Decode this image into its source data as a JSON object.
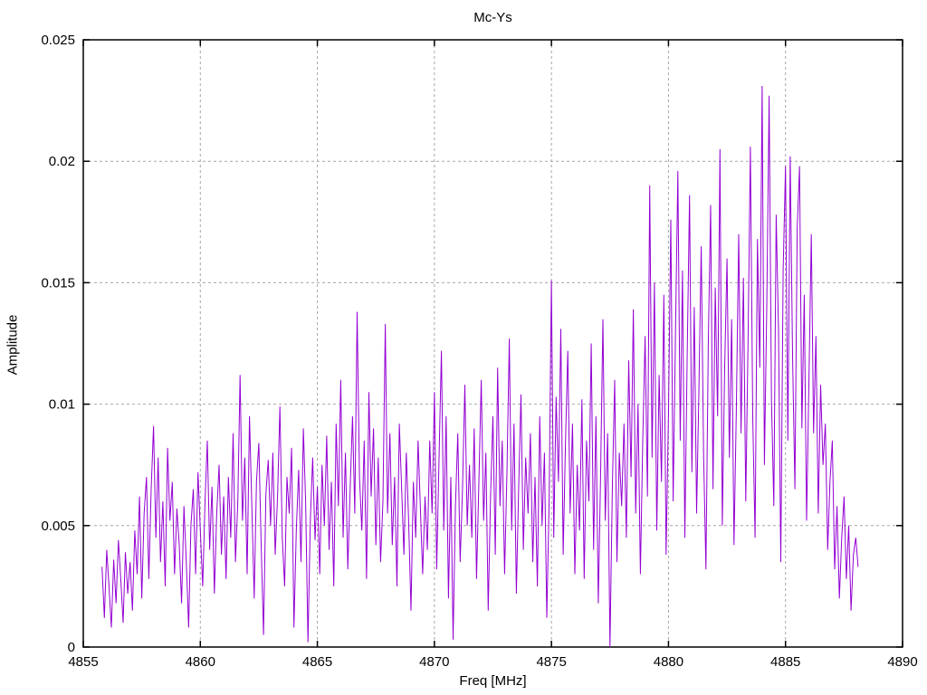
{
  "page": {
    "background": "#ffffff"
  },
  "chart_data": {
    "type": "line",
    "title": "Mc-Ys",
    "xlabel": "Freq [MHz]",
    "ylabel": "Amplitude",
    "xlim": [
      4855,
      4890
    ],
    "ylim": [
      0,
      0.025
    ],
    "x_ticks": [
      4855,
      4860,
      4865,
      4870,
      4875,
      4880,
      4885,
      4890
    ],
    "x_tick_labels": [
      "4855",
      "4860",
      "4865",
      "4870",
      "4875",
      "4880",
      "4885",
      "4890"
    ],
    "y_ticks": [
      0,
      0.005,
      0.01,
      0.015,
      0.02,
      0.025
    ],
    "y_tick_labels": [
      "0",
      "0.005",
      "0.01",
      "0.015",
      "0.02",
      "0.025"
    ],
    "grid": true,
    "legend": "none",
    "line_color": "#9400d3",
    "grid_color": "#a6a6a6",
    "axis_color": "#000000",
    "series": [
      {
        "name": "Mc-Ys",
        "x_start": 4855.8,
        "x_step": 0.1,
        "y_scale": 0.0001,
        "y": [
          33,
          12,
          40,
          25,
          8,
          36,
          18,
          44,
          28,
          10,
          39,
          22,
          35,
          15,
          48,
          30,
          62,
          20,
          55,
          70,
          28,
          65,
          91,
          45,
          78,
          35,
          60,
          25,
          82,
          52,
          68,
          30,
          57,
          42,
          18,
          58,
          35,
          8,
          50,
          65,
          30,
          72,
          48,
          25,
          60,
          85,
          40,
          66,
          22,
          55,
          75,
          38,
          62,
          28,
          70,
          45,
          88,
          35,
          60,
          112,
          52,
          78,
          30,
          95,
          58,
          20,
          68,
          84,
          42,
          5,
          63,
          77,
          50,
          80,
          38,
          62,
          99,
          45,
          25,
          70,
          55,
          82,
          8,
          48,
          73,
          35,
          90,
          60,
          2,
          52,
          78,
          44,
          66,
          30,
          75,
          50,
          87,
          40,
          68,
          25,
          92,
          58,
          110,
          45,
          80,
          32,
          65,
          95,
          55,
          138,
          70,
          48,
          85,
          28,
          105,
          62,
          90,
          42,
          78,
          35,
          60,
          133,
          55,
          88,
          42,
          70,
          25,
          92,
          65,
          38,
          80,
          52,
          15,
          68,
          45,
          85,
          58,
          30,
          62,
          40,
          85,
          55,
          105,
          32,
          78,
          122,
          48,
          95,
          20,
          70,
          3,
          58,
          88,
          35,
          65,
          108,
          50,
          75,
          45,
          90,
          28,
          68,
          110,
          52,
          80,
          15,
          62,
          95,
          38,
          115,
          58,
          85,
          30,
          72,
          127,
          48,
          92,
          22,
          65,
          104,
          40,
          78,
          55,
          88,
          35,
          70,
          25,
          95,
          50,
          80,
          12,
          60,
          151,
          45,
          103,
          68,
          131,
          38,
          85,
          122,
          55,
          92,
          30,
          75,
          48,
          102,
          28,
          85,
          60,
          125,
          40,
          95,
          18,
          70,
          135,
          52,
          88,
          0,
          65,
          110,
          35,
          80,
          58,
          92,
          45,
          118,
          70,
          139,
          55,
          100,
          30,
          85,
          128,
          62,
          190,
          78,
          150,
          48,
          112,
          68,
          145,
          38,
          95,
          176,
          60,
          130,
          196,
          85,
          155,
          45,
          120,
          186,
          72,
          140,
          55,
          105,
          165,
          80,
          32,
          125,
          182,
          65,
          148,
          95,
          205,
          50,
          115,
          160,
          78,
          135,
          42,
          98,
          170,
          88,
          152,
          60,
          125,
          206,
          95,
          45,
          168,
          115,
          231,
          75,
          140,
          227,
          102,
          58,
          178,
          130,
          35,
          155,
          198,
          85,
          202,
          120,
          65,
          172,
          198,
          90,
          145,
          52,
          110,
          170,
          88,
          128,
          55,
          108,
          75,
          92,
          40,
          68,
          85,
          32,
          58,
          20,
          45,
          62,
          28,
          50,
          15,
          38,
          45,
          33
        ]
      }
    ]
  }
}
